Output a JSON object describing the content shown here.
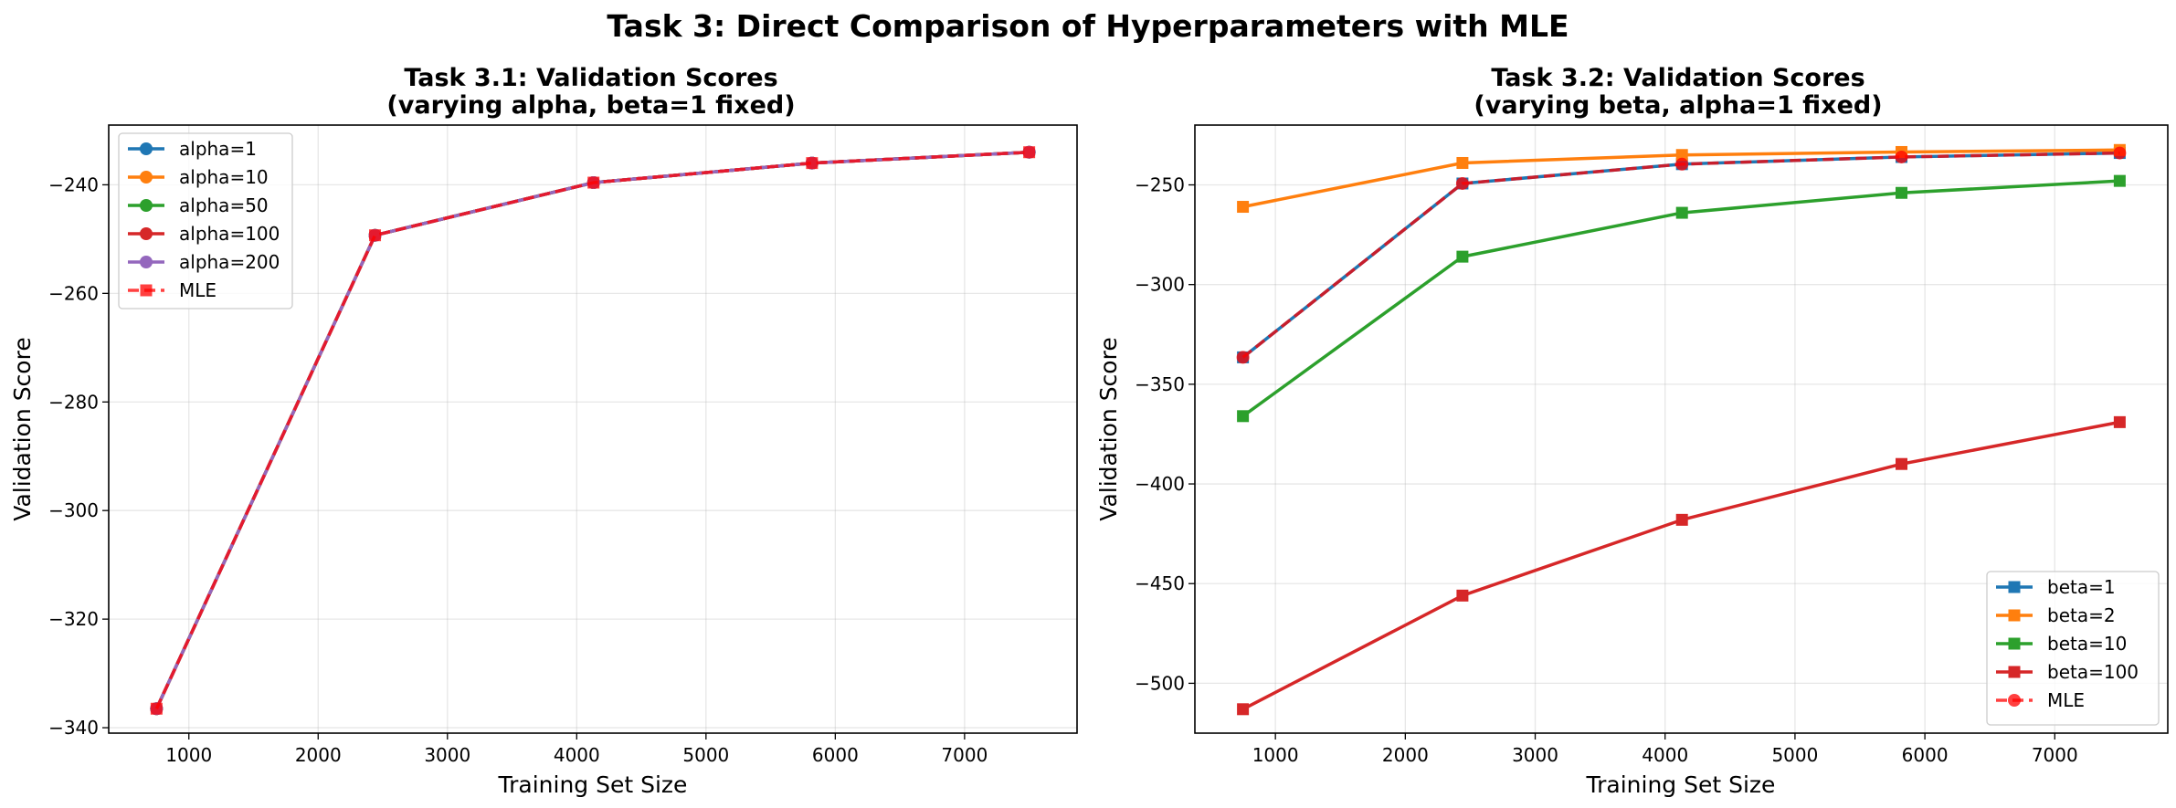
{
  "suptitle": "Task 3: Direct Comparison of Hyperparameters with MLE",
  "chart_data": [
    {
      "type": "line",
      "title_line1": "Task 3.1: Validation Scores",
      "title_line2": "(varying alpha, beta=1 fixed)",
      "xlabel": "Training Set Size",
      "ylabel": "Validation Score",
      "xlim": [
        380,
        7870
      ],
      "ylim": [
        -341,
        -229
      ],
      "xticks": [
        1000,
        2000,
        3000,
        4000,
        5000,
        6000,
        7000
      ],
      "yticks": [
        -240,
        -260,
        -280,
        -300,
        -320,
        -340
      ],
      "grid": true,
      "legend_position": "upper left",
      "x": [
        750,
        2440,
        4130,
        5820,
        7500
      ],
      "series": [
        {
          "name": "alpha=1",
          "color": "#1f77b4",
          "marker": "circle",
          "style": "solid",
          "values": [
            -336.5,
            -249.3,
            -239.6,
            -236.0,
            -234.0
          ]
        },
        {
          "name": "alpha=10",
          "color": "#ff7f0e",
          "marker": "circle",
          "style": "solid",
          "values": [
            -336.5,
            -249.3,
            -239.6,
            -236.0,
            -234.0
          ]
        },
        {
          "name": "alpha=50",
          "color": "#2ca02c",
          "marker": "circle",
          "style": "solid",
          "values": [
            -336.5,
            -249.3,
            -239.6,
            -236.0,
            -234.0
          ]
        },
        {
          "name": "alpha=100",
          "color": "#d62728",
          "marker": "circle",
          "style": "solid",
          "values": [
            -336.5,
            -249.3,
            -239.6,
            -236.0,
            -234.0
          ]
        },
        {
          "name": "alpha=200",
          "color": "#9467bd",
          "marker": "circle",
          "style": "solid",
          "values": [
            -336.5,
            -249.3,
            -239.6,
            -236.0,
            -234.0
          ]
        },
        {
          "name": "MLE",
          "color": "#ff0000",
          "marker": "square",
          "style": "dashed",
          "values": [
            -336.5,
            -249.3,
            -239.6,
            -236.0,
            -234.0
          ]
        }
      ]
    },
    {
      "type": "line",
      "title_line1": "Task 3.2: Validation Scores",
      "title_line2": "(varying beta, alpha=1 fixed)",
      "xlabel": "Training Set Size",
      "ylabel": "Validation Score",
      "xlim": [
        380,
        7870
      ],
      "ylim": [
        -525,
        -220
      ],
      "xticks": [
        1000,
        2000,
        3000,
        4000,
        5000,
        6000,
        7000
      ],
      "yticks": [
        -250,
        -300,
        -350,
        -400,
        -450,
        -500
      ],
      "grid": true,
      "legend_position": "lower right",
      "x": [
        750,
        2440,
        4130,
        5820,
        7500
      ],
      "series": [
        {
          "name": "beta=1",
          "color": "#1f77b4",
          "marker": "square",
          "style": "solid",
          "values": [
            -336.5,
            -249.3,
            -239.6,
            -236.0,
            -234.0
          ]
        },
        {
          "name": "beta=2",
          "color": "#ff7f0e",
          "marker": "square",
          "style": "solid",
          "values": [
            -261.0,
            -239.0,
            -235.0,
            -233.5,
            -232.5
          ]
        },
        {
          "name": "beta=10",
          "color": "#2ca02c",
          "marker": "square",
          "style": "solid",
          "values": [
            -366.0,
            -286.0,
            -264.0,
            -254.0,
            -248.0
          ]
        },
        {
          "name": "beta=100",
          "color": "#d62728",
          "marker": "square",
          "style": "solid",
          "values": [
            -513.0,
            -456.0,
            -418.0,
            -390.0,
            -369.0
          ]
        },
        {
          "name": "MLE",
          "color": "#ff0000",
          "marker": "circle",
          "style": "dashed",
          "values": [
            -336.5,
            -249.3,
            -239.6,
            -236.0,
            -234.0
          ]
        }
      ]
    }
  ]
}
